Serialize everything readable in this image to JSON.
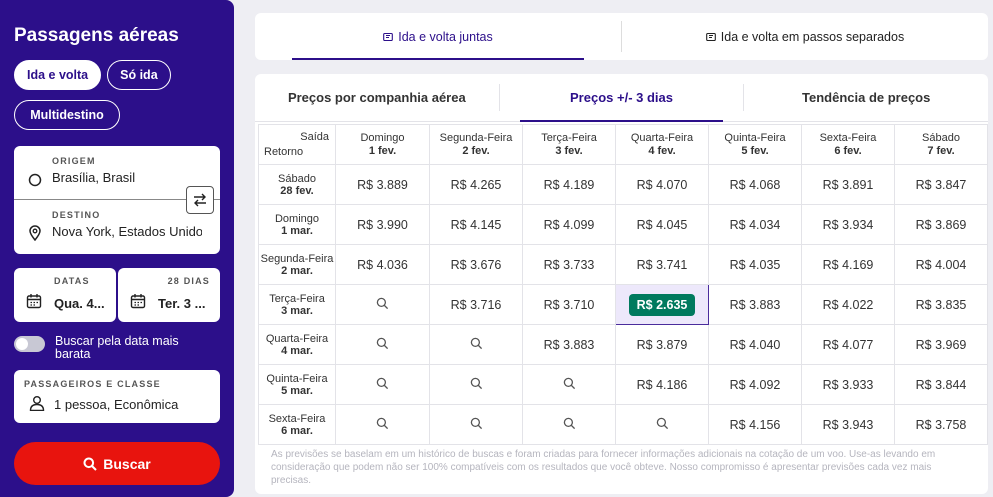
{
  "sidebar": {
    "title": "Passagens aéreas",
    "trip_types": [
      "Ida e volta",
      "Só ida",
      "Multidestino"
    ],
    "origin_label": "ORIGEM",
    "origin_value": "Brasília, Brasil",
    "destination_label": "DESTINO",
    "destination_value": "Nova York, Estados Unidos",
    "dates_label": "DATAS",
    "days_label": "28 DIAS",
    "depart_value": "Qua. 4...",
    "return_value": "Ter. 3 ...",
    "cheapest_toggle_label": "Buscar pela data mais barata",
    "pax_label": "PASSAGEIROS E CLASSE",
    "pax_value": "1 pessoa, Econômica",
    "search_label": "Buscar"
  },
  "top_tabs": [
    "Ida e volta juntas",
    "Ida e volta em passos separados"
  ],
  "sub_tabs": [
    "Preços por companhia aérea",
    "Preços +/- 3 dias",
    "Tendência de preços"
  ],
  "grid": {
    "corner_departure": "Saída",
    "corner_return": "Retorno",
    "columns": [
      {
        "day": "Domingo",
        "date": "1 fev."
      },
      {
        "day": "Segunda-Feira",
        "date": "2 fev."
      },
      {
        "day": "Terça-Feira",
        "date": "3 fev."
      },
      {
        "day": "Quarta-Feira",
        "date": "4 fev."
      },
      {
        "day": "Quinta-Feira",
        "date": "5 fev."
      },
      {
        "day": "Sexta-Feira",
        "date": "6 fev."
      },
      {
        "day": "Sábado",
        "date": "7 fev."
      }
    ],
    "rows": [
      {
        "day": "Sábado",
        "date": "28 fev.",
        "cells": [
          "R$ 3.889",
          "R$ 4.265",
          "R$ 4.189",
          "R$ 4.070",
          "R$ 4.068",
          "R$ 3.891",
          "R$ 3.847"
        ]
      },
      {
        "day": "Domingo",
        "date": "1 mar.",
        "cells": [
          "R$ 3.990",
          "R$ 4.145",
          "R$ 4.099",
          "R$ 4.045",
          "R$ 4.034",
          "R$ 3.934",
          "R$ 3.869"
        ]
      },
      {
        "day": "Segunda-Feira",
        "date": "2 mar.",
        "cells": [
          "R$ 4.036",
          "R$ 3.676",
          "R$ 3.733",
          "R$ 3.741",
          "R$ 4.035",
          "R$ 4.169",
          "R$ 4.004"
        ]
      },
      {
        "day": "Terça-Feira",
        "date": "3 mar.",
        "cells": [
          "",
          "R$ 3.716",
          "R$ 3.710",
          "R$ 2.635",
          "R$ 3.883",
          "R$ 4.022",
          "R$ 3.835"
        ]
      },
      {
        "day": "Quarta-Feira",
        "date": "4 mar.",
        "cells": [
          "",
          "",
          "R$ 3.883",
          "R$ 3.879",
          "R$ 4.040",
          "R$ 4.077",
          "R$ 3.969"
        ]
      },
      {
        "day": "Quinta-Feira",
        "date": "5 mar.",
        "cells": [
          "",
          "",
          "",
          "R$ 4.186",
          "R$ 4.092",
          "R$ 3.933",
          "R$ 3.844"
        ]
      },
      {
        "day": "Sexta-Feira",
        "date": "6 mar.",
        "cells": [
          "",
          "",
          "",
          "",
          "R$ 4.156",
          "R$ 3.943",
          "R$ 3.758"
        ]
      }
    ],
    "best": {
      "row": 3,
      "col": 3
    }
  },
  "note": "As previsões se baselam em um histórico de buscas e foram criadas para fornecer informações adicionais na cotação de um voo. Use-as levando em consideração que podem não ser 100% compatíveis com os resultados que você obteve. Nosso compromisso é apresentar previsões cada vez mais precisas.",
  "colors": {
    "brand": "#2c0f8a",
    "search": "#e8140e",
    "best": "#007a5e"
  }
}
